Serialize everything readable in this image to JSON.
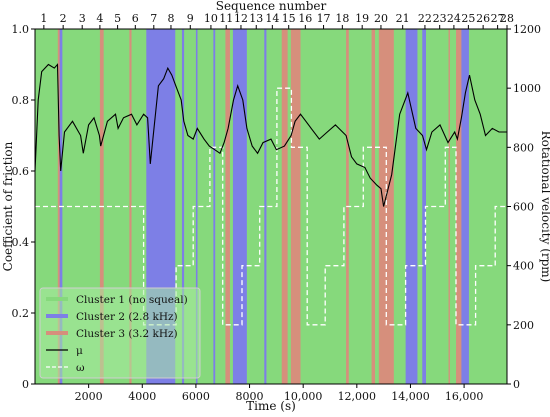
{
  "chart_data": {
    "type": "line",
    "title": "",
    "xlabel": "Time (s)",
    "ylabel_left": "Coefficient of friction",
    "ylabel_right": "Rotational velocity (rpm)",
    "top_axis_label": "Sequence number",
    "xlim": [
      0,
      17600
    ],
    "ylim_left": [
      0,
      1.0
    ],
    "ylim_right": [
      0,
      1200
    ],
    "x_ticks": [
      2000,
      4000,
      6000,
      8000,
      10000,
      12000,
      14000,
      16000
    ],
    "x_tick_labels": [
      "2000",
      "4000",
      "6000",
      "8000",
      "10,000",
      "12,000",
      "14,000",
      "16,000"
    ],
    "y_left_ticks": [
      0,
      0.2,
      0.4,
      0.6,
      0.8,
      1.0
    ],
    "y_left_tick_labels": [
      "0",
      "0.2",
      "0.4",
      "0.6",
      "0.8",
      "1.0"
    ],
    "y_right_ticks": [
      0,
      200,
      400,
      600,
      800,
      1000,
      1200
    ],
    "y_right_tick_labels": [
      "0",
      "200",
      "400",
      "600",
      "800",
      "1000",
      "1200"
    ],
    "sequence_numbers": [
      {
        "label": "1",
        "x": 330
      },
      {
        "label": "2",
        "x": 1050
      },
      {
        "label": "3",
        "x": 1760
      },
      {
        "label": "4",
        "x": 2420
      },
      {
        "label": "5",
        "x": 3080
      },
      {
        "label": "6",
        "x": 3740
      },
      {
        "label": "7",
        "x": 4430
      },
      {
        "label": "8",
        "x": 5070
      },
      {
        "label": "9",
        "x": 5790
      },
      {
        "label": "10",
        "x": 6560
      },
      {
        "label": "11",
        "x": 7130
      },
      {
        "label": "12",
        "x": 7680
      },
      {
        "label": "13",
        "x": 8250
      },
      {
        "label": "14",
        "x": 8850
      },
      {
        "label": "15",
        "x": 9460
      },
      {
        "label": "16",
        "x": 10080
      },
      {
        "label": "17",
        "x": 10760
      },
      {
        "label": "18",
        "x": 11460
      },
      {
        "label": "19",
        "x": 12200
      },
      {
        "label": "20",
        "x": 12900
      },
      {
        "label": "21",
        "x": 13710
      },
      {
        "label": "22",
        "x": 14540
      },
      {
        "label": "23",
        "x": 15090
      },
      {
        "label": "24",
        "x": 15620
      },
      {
        "label": "25",
        "x": 16160
      },
      {
        "label": "26",
        "x": 16710
      },
      {
        "label": "27",
        "x": 17250
      },
      {
        "label": "28",
        "x": 17850
      }
    ],
    "cluster_colors": {
      "1": "#86d97c",
      "2": "#7d7fe6",
      "3": "#d68f7c"
    },
    "cluster_segments": [
      {
        "cluster": 1,
        "x0": 0,
        "x1": 850
      },
      {
        "cluster": 3,
        "x0": 850,
        "x1": 920
      },
      {
        "cluster": 2,
        "x0": 920,
        "x1": 1020
      },
      {
        "cluster": 1,
        "x0": 1020,
        "x1": 2420
      },
      {
        "cluster": 3,
        "x0": 2420,
        "x1": 2560
      },
      {
        "cluster": 1,
        "x0": 2560,
        "x1": 3520
      },
      {
        "cluster": 3,
        "x0": 3520,
        "x1": 3600
      },
      {
        "cluster": 1,
        "x0": 3600,
        "x1": 4150
      },
      {
        "cluster": 2,
        "x0": 4150,
        "x1": 5230
      },
      {
        "cluster": 1,
        "x0": 5230,
        "x1": 5480
      },
      {
        "cluster": 2,
        "x0": 5480,
        "x1": 5560
      },
      {
        "cluster": 1,
        "x0": 5560,
        "x1": 6000
      },
      {
        "cluster": 2,
        "x0": 6000,
        "x1": 6060
      },
      {
        "cluster": 1,
        "x0": 6060,
        "x1": 6650
      },
      {
        "cluster": 2,
        "x0": 6650,
        "x1": 6720
      },
      {
        "cluster": 1,
        "x0": 6720,
        "x1": 7100
      },
      {
        "cluster": 3,
        "x0": 7100,
        "x1": 7270
      },
      {
        "cluster": 1,
        "x0": 7270,
        "x1": 7380
      },
      {
        "cluster": 2,
        "x0": 7380,
        "x1": 7900
      },
      {
        "cluster": 1,
        "x0": 7900,
        "x1": 8550
      },
      {
        "cluster": 2,
        "x0": 8550,
        "x1": 8630
      },
      {
        "cluster": 1,
        "x0": 8630,
        "x1": 9200
      },
      {
        "cluster": 3,
        "x0": 9200,
        "x1": 9420
      },
      {
        "cluster": 1,
        "x0": 9420,
        "x1": 9540
      },
      {
        "cluster": 3,
        "x0": 9540,
        "x1": 9900
      },
      {
        "cluster": 1,
        "x0": 9900,
        "x1": 11600
      },
      {
        "cluster": 3,
        "x0": 11600,
        "x1": 11700
      },
      {
        "cluster": 1,
        "x0": 11700,
        "x1": 12550
      },
      {
        "cluster": 3,
        "x0": 12550,
        "x1": 12680
      },
      {
        "cluster": 1,
        "x0": 12680,
        "x1": 12820
      },
      {
        "cluster": 3,
        "x0": 12820,
        "x1": 13380
      },
      {
        "cluster": 1,
        "x0": 13380,
        "x1": 13820
      },
      {
        "cluster": 2,
        "x0": 13820,
        "x1": 14260
      },
      {
        "cluster": 1,
        "x0": 14260,
        "x1": 14440
      },
      {
        "cluster": 2,
        "x0": 14440,
        "x1": 14580
      },
      {
        "cluster": 1,
        "x0": 14580,
        "x1": 15420
      },
      {
        "cluster": 3,
        "x0": 15420,
        "x1": 15470
      },
      {
        "cluster": 1,
        "x0": 15470,
        "x1": 15700
      },
      {
        "cluster": 3,
        "x0": 15700,
        "x1": 15900
      },
      {
        "cluster": 2,
        "x0": 15900,
        "x1": 16180
      },
      {
        "cluster": 1,
        "x0": 16180,
        "x1": 17600
      }
    ],
    "series": [
      {
        "name": "μ",
        "axis": "left",
        "style": "solid",
        "color": "#000000",
        "points": [
          [
            0,
            0.6
          ],
          [
            120,
            0.8
          ],
          [
            250,
            0.88
          ],
          [
            500,
            0.9
          ],
          [
            720,
            0.89
          ],
          [
            840,
            0.9
          ],
          [
            900,
            0.7
          ],
          [
            960,
            0.6
          ],
          [
            1100,
            0.71
          ],
          [
            1400,
            0.74
          ],
          [
            1700,
            0.7
          ],
          [
            1800,
            0.65
          ],
          [
            2000,
            0.73
          ],
          [
            2200,
            0.75
          ],
          [
            2400,
            0.7
          ],
          [
            2450,
            0.67
          ],
          [
            2700,
            0.74
          ],
          [
            3000,
            0.76
          ],
          [
            3100,
            0.72
          ],
          [
            3300,
            0.75
          ],
          [
            3600,
            0.76
          ],
          [
            3800,
            0.73
          ],
          [
            4050,
            0.76
          ],
          [
            4200,
            0.75
          ],
          [
            4300,
            0.62
          ],
          [
            4600,
            0.84
          ],
          [
            4800,
            0.86
          ],
          [
            4950,
            0.89
          ],
          [
            5100,
            0.87
          ],
          [
            5250,
            0.84
          ],
          [
            5450,
            0.8
          ],
          [
            5550,
            0.74
          ],
          [
            5700,
            0.7
          ],
          [
            5900,
            0.69
          ],
          [
            6050,
            0.72
          ],
          [
            6300,
            0.69
          ],
          [
            6500,
            0.67
          ],
          [
            6700,
            0.66
          ],
          [
            6900,
            0.65
          ],
          [
            7050,
            0.68
          ],
          [
            7200,
            0.72
          ],
          [
            7400,
            0.8
          ],
          [
            7560,
            0.84
          ],
          [
            7750,
            0.8
          ],
          [
            7900,
            0.72
          ],
          [
            8100,
            0.67
          ],
          [
            8300,
            0.65
          ],
          [
            8500,
            0.68
          ],
          [
            8800,
            0.69
          ],
          [
            9000,
            0.66
          ],
          [
            9300,
            0.67
          ],
          [
            9550,
            0.7
          ],
          [
            9700,
            0.74
          ],
          [
            9900,
            0.76
          ],
          [
            10100,
            0.74
          ],
          [
            10300,
            0.72
          ],
          [
            10600,
            0.69
          ],
          [
            10900,
            0.71
          ],
          [
            11200,
            0.73
          ],
          [
            11600,
            0.7
          ],
          [
            11800,
            0.64
          ],
          [
            12000,
            0.62
          ],
          [
            12300,
            0.61
          ],
          [
            12500,
            0.58
          ],
          [
            12750,
            0.56
          ],
          [
            12900,
            0.55
          ],
          [
            13000,
            0.5
          ],
          [
            13300,
            0.59
          ],
          [
            13600,
            0.76
          ],
          [
            13900,
            0.82
          ],
          [
            14200,
            0.72
          ],
          [
            14450,
            0.7
          ],
          [
            14600,
            0.66
          ],
          [
            14800,
            0.71
          ],
          [
            15100,
            0.73
          ],
          [
            15400,
            0.68
          ],
          [
            15650,
            0.71
          ],
          [
            15750,
            0.69
          ],
          [
            15900,
            0.75
          ],
          [
            16050,
            0.82
          ],
          [
            16200,
            0.87
          ],
          [
            16400,
            0.8
          ],
          [
            16600,
            0.76
          ],
          [
            16800,
            0.7
          ],
          [
            17050,
            0.72
          ],
          [
            17300,
            0.71
          ],
          [
            17600,
            0.71
          ]
        ]
      },
      {
        "name": "ω",
        "axis": "right",
        "style": "dashed",
        "color": "#ffffff",
        "points": [
          [
            0,
            600
          ],
          [
            4050,
            600
          ],
          [
            4050,
            200
          ],
          [
            5260,
            200
          ],
          [
            5260,
            400
          ],
          [
            5900,
            400
          ],
          [
            5900,
            600
          ],
          [
            6520,
            600
          ],
          [
            6520,
            800
          ],
          [
            7000,
            800
          ],
          [
            7000,
            200
          ],
          [
            7720,
            200
          ],
          [
            7720,
            400
          ],
          [
            8380,
            400
          ],
          [
            8380,
            600
          ],
          [
            9020,
            600
          ],
          [
            9020,
            1000
          ],
          [
            9560,
            1000
          ],
          [
            9560,
            800
          ],
          [
            10150,
            800
          ],
          [
            10150,
            200
          ],
          [
            10820,
            200
          ],
          [
            10820,
            400
          ],
          [
            11520,
            400
          ],
          [
            11520,
            600
          ],
          [
            12240,
            600
          ],
          [
            12240,
            800
          ],
          [
            13100,
            800
          ],
          [
            13100,
            200
          ],
          [
            13820,
            200
          ],
          [
            13820,
            400
          ],
          [
            14560,
            400
          ],
          [
            14560,
            600
          ],
          [
            15300,
            600
          ],
          [
            15300,
            800
          ],
          [
            15700,
            800
          ],
          [
            15700,
            200
          ],
          [
            16430,
            200
          ],
          [
            16430,
            400
          ],
          [
            17160,
            400
          ],
          [
            17160,
            600
          ],
          [
            17600,
            600
          ]
        ]
      }
    ],
    "legend": {
      "position": "lower-left",
      "entries": [
        {
          "label": "Cluster 1 (no squeal)",
          "swatch": "#86d97c",
          "kind": "band"
        },
        {
          "label": "Cluster 2 (2.8 kHz)",
          "swatch": "#7d7fe6",
          "kind": "band"
        },
        {
          "label": "Cluster 3 (3.2 kHz)",
          "swatch": "#d68f7c",
          "kind": "band"
        },
        {
          "label": "μ",
          "swatch": "#000000",
          "kind": "solid"
        },
        {
          "label": "ω",
          "swatch": "#ffffff",
          "kind": "dashed"
        }
      ]
    },
    "grid": false
  }
}
